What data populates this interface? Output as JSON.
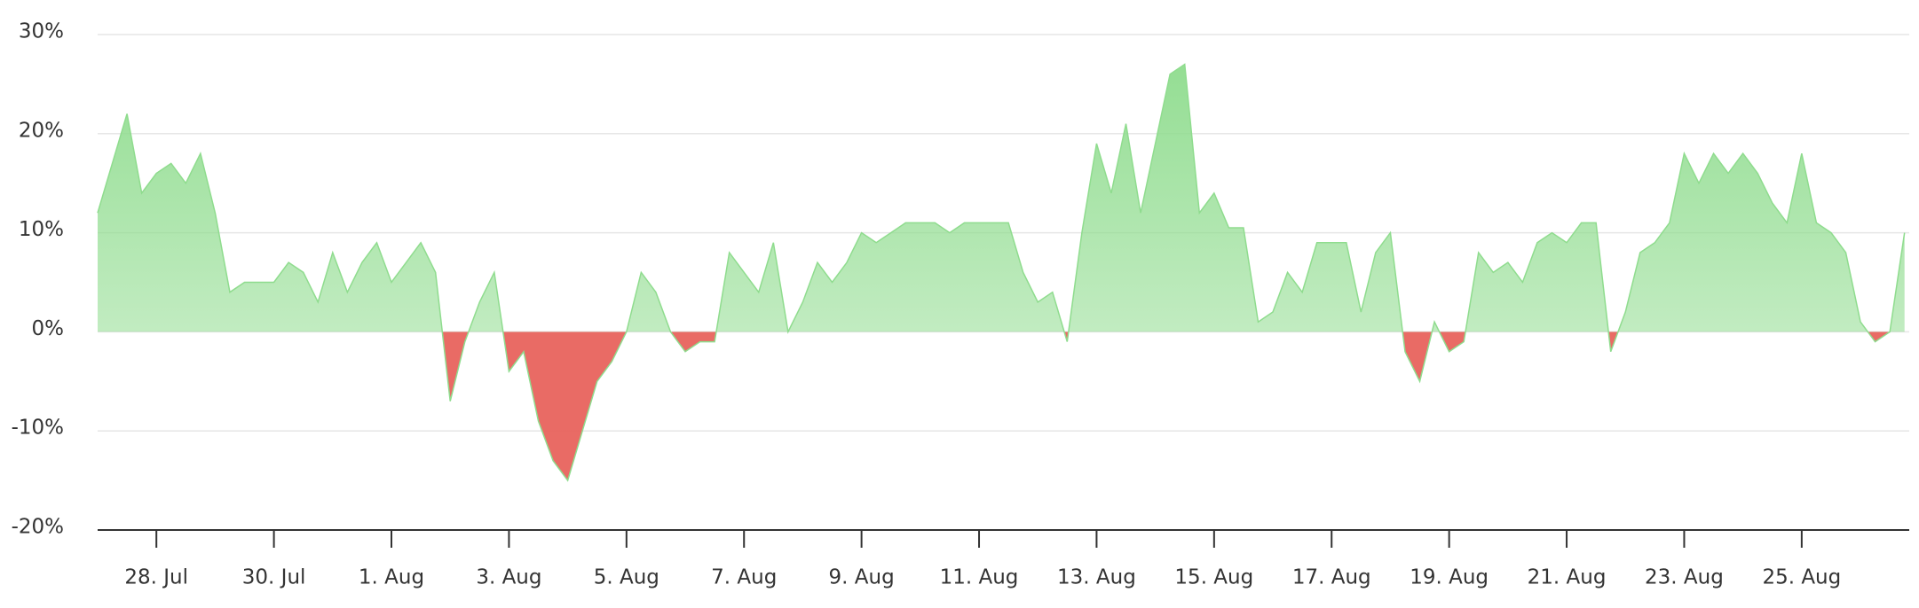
{
  "chart_data": {
    "type": "area",
    "x": [
      -1,
      -0.75,
      -0.5,
      -0.25,
      0,
      0.25,
      0.5,
      0.75,
      1,
      1.25,
      1.5,
      1.75,
      2,
      2.25,
      2.5,
      2.75,
      3,
      3.25,
      3.5,
      3.75,
      4,
      4.25,
      4.5,
      4.75,
      5,
      5.25,
      5.5,
      5.75,
      6,
      6.25,
      6.5,
      6.75,
      7,
      7.25,
      7.5,
      7.75,
      8,
      8.25,
      8.5,
      8.75,
      9,
      9.25,
      9.5,
      9.75,
      10,
      10.25,
      10.5,
      10.75,
      11,
      11.25,
      11.5,
      11.75,
      12,
      12.25,
      12.5,
      12.75,
      13,
      13.25,
      13.5,
      13.75,
      14,
      14.25,
      14.5,
      14.75,
      15,
      15.25,
      15.5,
      15.75,
      16,
      16.25,
      16.5,
      16.75,
      17,
      17.25,
      17.5,
      17.75,
      18,
      18.25,
      18.5,
      18.75,
      19,
      19.25,
      19.5,
      19.75,
      20,
      20.25,
      20.5,
      20.75,
      21,
      21.25,
      21.5,
      21.75,
      22,
      22.25,
      22.5,
      22.75,
      23,
      23.25,
      23.5,
      23.75,
      24,
      24.25,
      24.5,
      24.75,
      25,
      25.25,
      25.5,
      25.75,
      26,
      26.25,
      26.5,
      26.75,
      27,
      27.25,
      27.5,
      27.75,
      28,
      28.25,
      28.5,
      28.75,
      29,
      29.25,
      29.5,
      29.75
    ],
    "values": [
      12,
      17,
      22,
      14,
      16,
      17,
      15,
      18,
      12,
      4,
      5,
      5,
      5,
      7,
      6,
      3,
      8,
      4,
      7,
      9,
      5,
      7,
      9,
      6,
      -7,
      -1,
      3,
      6,
      -4,
      -2,
      -9,
      -13,
      -15,
      -10,
      -5,
      -3,
      0,
      6,
      4,
      0,
      -2,
      -1,
      -1,
      8,
      6,
      4,
      9,
      0,
      3,
      7,
      5,
      7,
      10,
      9,
      10,
      11,
      11,
      11,
      10,
      11,
      11,
      11,
      11,
      6,
      3,
      4,
      -1,
      10,
      19,
      14,
      21,
      12,
      19,
      26,
      27,
      12,
      14,
      10.5,
      10.5,
      1,
      2,
      6,
      4,
      9,
      9,
      9,
      2,
      8,
      10,
      -2,
      -5,
      1,
      -2,
      -1,
      8,
      6,
      7,
      5,
      9,
      10,
      9,
      11,
      11,
      -2,
      2,
      8,
      9,
      11,
      18,
      15,
      18,
      16,
      18,
      16,
      13,
      11,
      18,
      11,
      10,
      8,
      1,
      -1,
      0,
      10
    ],
    "color": "#8fdc8e",
    "negative_color": "#e8635d",
    "xlim": [
      -1,
      29.83
    ],
    "xticks": [
      {
        "value": 0,
        "label": "28. Jul"
      },
      {
        "value": 2,
        "label": "30. Jul"
      },
      {
        "value": 4,
        "label": "1. Aug"
      },
      {
        "value": 6,
        "label": "3. Aug"
      },
      {
        "value": 8,
        "label": "5. Aug"
      },
      {
        "value": 10,
        "label": "7. Aug"
      },
      {
        "value": 12,
        "label": "9. Aug"
      },
      {
        "value": 14,
        "label": "11. Aug"
      },
      {
        "value": 16,
        "label": "13. Aug"
      },
      {
        "value": 18,
        "label": "15. Aug"
      },
      {
        "value": 20,
        "label": "17. Aug"
      },
      {
        "value": 22,
        "label": "19. Aug"
      },
      {
        "value": 24,
        "label": "21. Aug"
      },
      {
        "value": 26,
        "label": "23. Aug"
      },
      {
        "value": 28,
        "label": "25. Aug"
      }
    ],
    "ylim": [
      -20,
      30
    ],
    "yticks": [
      {
        "value": -20,
        "label": "-20%"
      },
      {
        "value": -10,
        "label": "-10%"
      },
      {
        "value": 0,
        "label": "0%"
      },
      {
        "value": 10,
        "label": "10%"
      },
      {
        "value": 20,
        "label": "20%"
      },
      {
        "value": 30,
        "label": "30%"
      }
    ],
    "grid": true
  }
}
